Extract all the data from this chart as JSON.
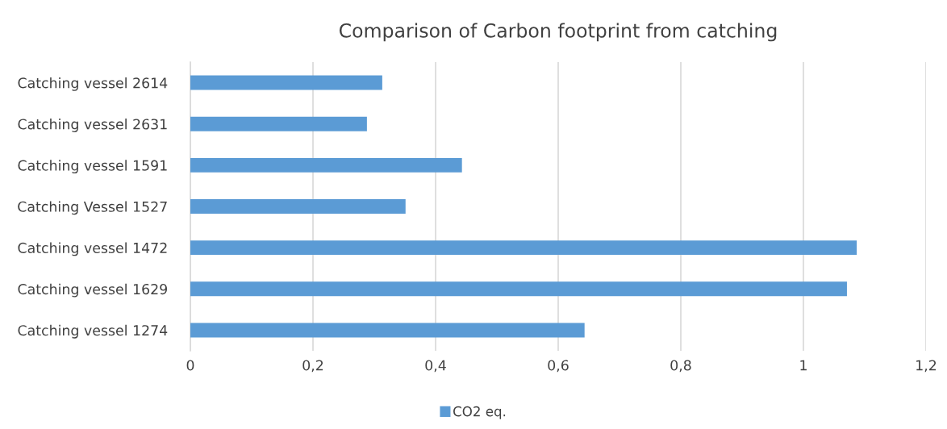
{
  "chart_data": {
    "type": "bar",
    "orientation": "horizontal",
    "title": "Comparison of Carbon footprint from catching",
    "categories": [
      "Catching vessel 2614",
      "Catching vessel 2631",
      "Catching vessel 1591",
      "Catching Vessel 1527",
      "Catching vessel 1472",
      "Catching vessel 1629",
      "Catching vessel 1274"
    ],
    "series": [
      {
        "name": "CO2 eq.",
        "color": "#5b9bd5",
        "values": [
          0.313,
          0.288,
          0.443,
          0.351,
          1.087,
          1.071,
          0.643
        ]
      }
    ],
    "xlim": [
      0,
      1.2
    ],
    "xticks": [
      0,
      {
        "value": 0.2,
        "label": "0,2"
      },
      {
        "value": 0.4,
        "label": "0,4"
      },
      {
        "value": 0.6,
        "label": "0,6"
      },
      {
        "value": 0.8,
        "label": "0,8"
      },
      1,
      {
        "value": 1.2,
        "label": "1,2"
      }
    ],
    "grid": "x",
    "legend": "bottom"
  }
}
